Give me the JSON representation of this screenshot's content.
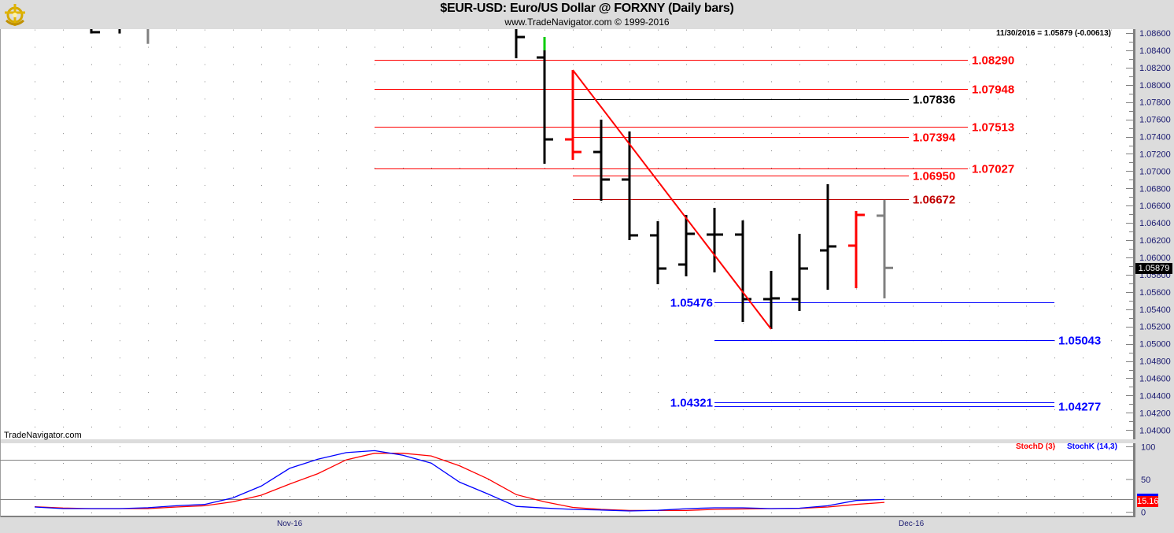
{
  "header": {
    "title": "$EUR-USD:  Euro/US Dollar @ FORXNY  (Daily bars)",
    "subtitle": "www.TradeNavigator.com © 1999-2016",
    "logo": "ship-wheel-anchor-logo"
  },
  "readout": "11/30/2016 = 1.05879 (-0.00613)",
  "last_price_label": "1.05879",
  "watermark": "TradeNavigator.com",
  "colors": {
    "up": "#000000",
    "down": "#ff0000",
    "neutral": "#808080",
    "highlight": "#00cc00",
    "stochD": "#ff0000",
    "stochK": "#0000ff",
    "axis_text": "#1a1a70"
  },
  "chart_data": [
    {
      "type": "ohlc",
      "title": "$EUR-USD:  Euro/US Dollar @ FORXNY  (Daily bars)",
      "ylim": [
        1.039,
        1.0865
      ],
      "y_ticks": [
        "1.08600",
        "1.08400",
        "1.08200",
        "1.08000",
        "1.07800",
        "1.07600",
        "1.07400",
        "1.07200",
        "1.07000",
        "1.06800",
        "1.06600",
        "1.06400",
        "1.06200",
        "1.06000",
        "1.05800",
        "1.05600",
        "1.05400",
        "1.05200",
        "1.05000",
        "1.04800",
        "1.04600",
        "1.04400",
        "1.04200",
        "1.04000"
      ],
      "x_labels": [
        {
          "date": "2016-11-01",
          "label": "Nov-16"
        },
        {
          "date": "2016-12-01",
          "label": "Dec-16"
        }
      ],
      "grid": "dotted",
      "bars": [
        {
          "date": "2016-10-21",
          "open": null,
          "high": null,
          "low": 1.08595,
          "close": 1.0861,
          "color": "up"
        },
        {
          "date": "2016-10-24",
          "open": null,
          "high": null,
          "low": 1.08595,
          "close": null,
          "color": "up"
        },
        {
          "date": "2016-10-25",
          "open": null,
          "high": null,
          "low": 1.08475,
          "close": null,
          "color": "neutral"
        },
        {
          "date": "2016-11-11",
          "open": null,
          "high": null,
          "low": 1.08308,
          "close": 1.08554,
          "color": "up"
        },
        {
          "date": "2016-11-14",
          "open": 1.08317,
          "high": 1.08554,
          "low": 1.07086,
          "close": 1.07368,
          "color": "up",
          "highlight_top_to": 1.084
        },
        {
          "date": "2016-11-15",
          "open": 1.07368,
          "high": 1.08171,
          "low": 1.07131,
          "close": 1.07222,
          "color": "down"
        },
        {
          "date": "2016-11-16",
          "open": 1.07222,
          "high": 1.07597,
          "low": 1.06657,
          "close": 1.06903,
          "color": "up"
        },
        {
          "date": "2016-11-17",
          "open": 1.06903,
          "high": 1.0746,
          "low": 1.06201,
          "close": 1.06256,
          "color": "up"
        },
        {
          "date": "2016-11-18",
          "open": 1.06256,
          "high": 1.0642,
          "low": 1.0569,
          "close": 1.05872,
          "color": "up"
        },
        {
          "date": "2016-11-21",
          "open": 1.05918,
          "high": 1.06493,
          "low": 1.05781,
          "close": 1.06274,
          "color": "up"
        },
        {
          "date": "2016-11-22",
          "open": 1.06265,
          "high": 1.06575,
          "low": 1.05827,
          "close": 1.06265,
          "color": "up"
        },
        {
          "date": "2016-11-23",
          "open": 1.06265,
          "high": 1.06429,
          "low": 1.05252,
          "close": 1.05517,
          "color": "up"
        },
        {
          "date": "2016-11-24",
          "open": 1.05517,
          "high": 1.05845,
          "low": 1.0517,
          "close": 1.05526,
          "color": "up"
        },
        {
          "date": "2016-11-25",
          "open": 1.05517,
          "high": 1.06274,
          "low": 1.0538,
          "close": 1.05872,
          "color": "up"
        },
        {
          "date": "2016-11-28",
          "open": 1.06082,
          "high": 1.06849,
          "low": 1.05626,
          "close": 1.06128,
          "color": "up"
        },
        {
          "date": "2016-11-29",
          "open": 1.06137,
          "high": 1.06539,
          "low": 1.05644,
          "close": 1.06493,
          "color": "down"
        },
        {
          "date": "2016-11-30",
          "open": 1.06484,
          "high": 1.06666,
          "low": 1.05526,
          "close": 1.05879,
          "color": "neutral"
        }
      ],
      "levels": [
        {
          "value": 1.0829,
          "label": "1.08290",
          "color": "#ff0000"
        },
        {
          "value": 1.07948,
          "label": "1.07948",
          "color": "#ff0000"
        },
        {
          "value": 1.07513,
          "label": "1.07513",
          "color": "#ff0000"
        },
        {
          "value": 1.07027,
          "label": "1.07027",
          "color": "#ff0000"
        },
        {
          "value": 1.07836,
          "label": "1.07836",
          "color": "#000000"
        },
        {
          "value": 1.07394,
          "label": "1.07394",
          "color": "#ff0000"
        },
        {
          "value": 1.0695,
          "label": "1.06950",
          "color": "#ff0000"
        },
        {
          "value": 1.06672,
          "label": "1.06672",
          "color": "#c00000"
        },
        {
          "value": 1.05476,
          "label": "1.05476",
          "color": "#0000ff"
        },
        {
          "value": 1.05043,
          "label": "1.05043",
          "color": "#0000ff"
        },
        {
          "value": 1.04321,
          "label": "1.04321",
          "color": "#0000ff"
        },
        {
          "value": 1.04277,
          "label": "1.04277",
          "color": "#0000ff"
        }
      ],
      "trendline": [
        {
          "date": "2016-11-15",
          "value": 1.08171
        },
        {
          "date": "2016-11-24",
          "value": 1.0517
        }
      ]
    },
    {
      "type": "line",
      "ylim": [
        0,
        100
      ],
      "y_ticks": [
        "100",
        "50",
        "0"
      ],
      "reference_lines": [
        80,
        20
      ],
      "dates": [
        "2016-10-19",
        "2016-10-20",
        "2016-10-21",
        "2016-10-24",
        "2016-10-25",
        "2016-10-26",
        "2016-10-27",
        "2016-10-28",
        "2016-10-31",
        "2016-11-01",
        "2016-11-02",
        "2016-11-03",
        "2016-11-04",
        "2016-11-07",
        "2016-11-08",
        "2016-11-09",
        "2016-11-10",
        "2016-11-11",
        "2016-11-14",
        "2016-11-15",
        "2016-11-16",
        "2016-11-17",
        "2016-11-18",
        "2016-11-21",
        "2016-11-22",
        "2016-11-23",
        "2016-11-24",
        "2016-11-25",
        "2016-11-28",
        "2016-11-29",
        "2016-11-30"
      ],
      "series": [
        {
          "name": "StochD (3)",
          "color": "#ff0000",
          "last_label": "15.16",
          "values": [
            8.5,
            6.5,
            5.6,
            5.6,
            5.6,
            8,
            10,
            16,
            26,
            43,
            59,
            80,
            90,
            90,
            86,
            71,
            51,
            27,
            16,
            7.5,
            4.5,
            2.8,
            2.8,
            2.8,
            4.4,
            5,
            5.6,
            6,
            8,
            12,
            15.16
          ]
        },
        {
          "name": "StochK (14,3)",
          "color": "#0000ff",
          "values": [
            8,
            5.6,
            5.6,
            5.6,
            7,
            10,
            12,
            22,
            40,
            67,
            81,
            91,
            94,
            87,
            75,
            46,
            28,
            9,
            6.5,
            4.5,
            3.5,
            2,
            3,
            5.5,
            6.8,
            6.8,
            5.6,
            6.2,
            10,
            18,
            19.6
          ]
        }
      ]
    }
  ]
}
